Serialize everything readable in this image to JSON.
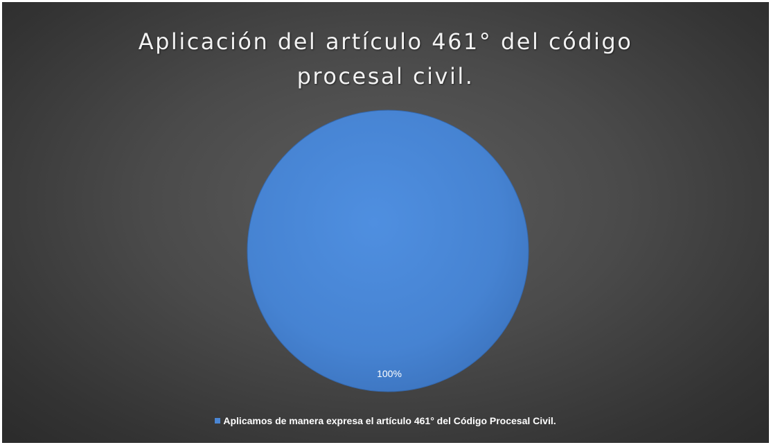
{
  "chart_data": {
    "type": "pie",
    "title_lines": [
      "Aplicación del artículo 461° del código",
      "procesal civil."
    ],
    "categories": [
      "Aplicamos de manera expresa el artículo 461° del Código Procesal Civil."
    ],
    "values": [
      100
    ],
    "data_labels": [
      "100%"
    ],
    "legend_position": "bottom",
    "colors": [
      "#4a86d4"
    ],
    "background_color": "#4a4a4a"
  }
}
